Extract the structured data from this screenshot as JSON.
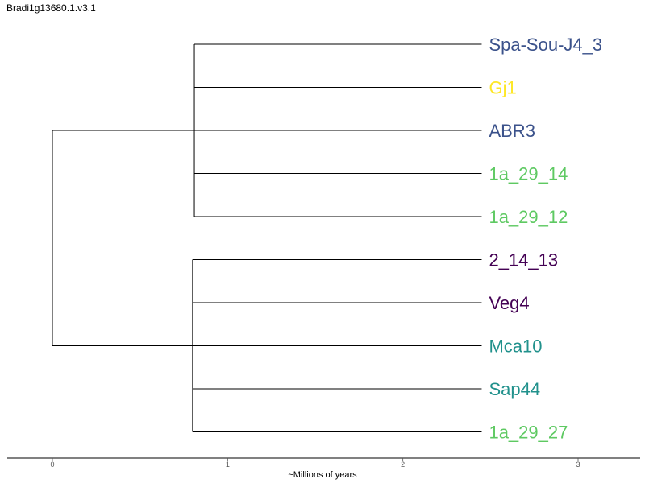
{
  "title": "Bradi1g13680.1.v3.1",
  "axis": {
    "label": "~Millions of years",
    "ticks": [
      "0",
      "1",
      "2",
      "3"
    ],
    "range": [
      -0.26,
      3.35
    ]
  },
  "tree": {
    "root_time": 0,
    "clades": [
      {
        "node_time": 0.81,
        "leaves": [
          {
            "name": "Spa-Sou-J4_3",
            "color": "#3b528b"
          },
          {
            "name": "Gj1",
            "color": "#fde725"
          },
          {
            "name": "ABR3",
            "color": "#3b528b"
          },
          {
            "name": "1a_29_14",
            "color": "#5ec962"
          },
          {
            "name": "1a_29_12",
            "color": "#5ec962"
          }
        ]
      },
      {
        "node_time": 0.8,
        "leaves": [
          {
            "name": "2_14_13",
            "color": "#440154"
          },
          {
            "name": "Veg4",
            "color": "#440154"
          },
          {
            "name": "Mca10",
            "color": "#21918c"
          },
          {
            "name": "Sap44",
            "color": "#21918c"
          },
          {
            "name": "1a_29_27",
            "color": "#5ec962"
          }
        ]
      }
    ],
    "leaf_time": 2.45
  }
}
